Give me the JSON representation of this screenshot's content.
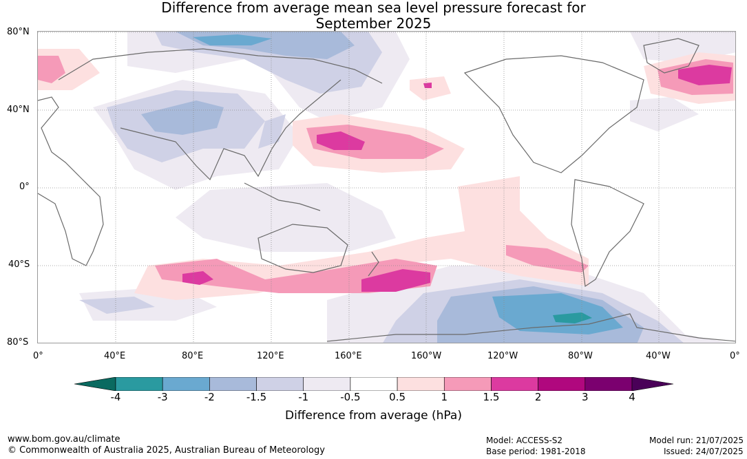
{
  "header": {
    "title_line1": "Difference from average mean sea level pressure forecast for",
    "title_line2": "September 2025"
  },
  "map": {
    "latitude_labels": [
      "80°N",
      "40°N",
      "0°",
      "40°S",
      "80°S"
    ],
    "longitude_labels": [
      "0°",
      "40°E",
      "80°E",
      "120°E",
      "160°E",
      "160°W",
      "120°W",
      "80°W",
      "40°W",
      "0°"
    ],
    "colors": {
      "coastline": "#6a6a6a",
      "gridline": "#8c8c8c"
    },
    "anomaly_regions": [
      {
        "name": "North Pacific high",
        "level": "1.5 to 2",
        "color": "#dc3aa0"
      },
      {
        "name": "North Atlantic high",
        "level": "1.5 to 2",
        "color": "#dc3aa0"
      },
      {
        "name": "Southern mid-latitude high",
        "level": "1.5 to 2",
        "color": "#dc3aa0"
      },
      {
        "name": "Antarctic low",
        "level": "-4 to -3",
        "color": "#2a9aa0"
      },
      {
        "name": "Northern Eurasia low",
        "level": "-3 to -2",
        "color": "#6aa9d0"
      }
    ]
  },
  "legend": {
    "title": "Difference from average (hPa)",
    "ticks": [
      "-4",
      "-3",
      "-2",
      "-1.5",
      "-1",
      "-0.5",
      "0.5",
      "1",
      "1.5",
      "2",
      "3",
      "4"
    ],
    "colors": [
      "#0a6a60",
      "#2a9aa0",
      "#6aa9d0",
      "#a8bada",
      "#cfd1e6",
      "#eeeaf2",
      "#ffffff",
      "#fde0e0",
      "#f59ab8",
      "#dc3aa0",
      "#b0087e",
      "#7b006f",
      "#4a0058"
    ]
  },
  "footer": {
    "website": "www.bom.gov.au/climate",
    "copyright": "© Commonwealth of Australia 2025, Australian Bureau of Meteorology",
    "model": "Model: ACCESS-S2",
    "base_period": "Base period: 1981-2018",
    "model_run": "Model run: 21/07/2025",
    "issued": "Issued: 24/07/2025"
  }
}
